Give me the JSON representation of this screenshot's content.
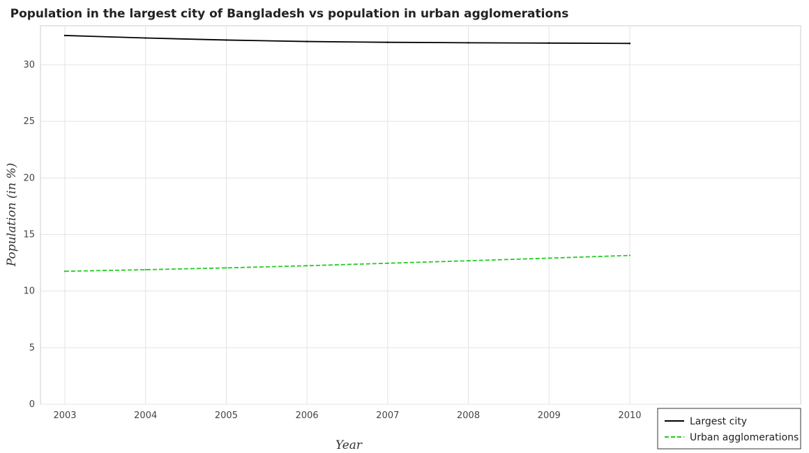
{
  "chart_data": {
    "type": "line",
    "title": "Population in the largest city of Bangladesh vs population in urban agglomerations",
    "xlabel": "Year",
    "ylabel": "Population (in %)",
    "categories": [
      "2003",
      "2004",
      "2005",
      "2006",
      "2007",
      "2008",
      "2009",
      "2010"
    ],
    "ylim": [
      0,
      34
    ],
    "yticks": [
      0,
      5,
      10,
      15,
      20,
      25,
      30
    ],
    "grid": true,
    "legend_position": "bottom-right",
    "series": [
      {
        "name": "Largest city",
        "color": "#000000",
        "dash": "solid",
        "values": [
          32.59,
          32.37,
          32.19,
          32.06,
          31.99,
          31.95,
          31.92,
          31.89
        ]
      },
      {
        "name": "Urban agglomerations",
        "color": "#22cc22",
        "dash": "dashed",
        "values": [
          11.75,
          11.89,
          12.05,
          12.24,
          12.46,
          12.68,
          12.91,
          13.15
        ]
      }
    ]
  }
}
